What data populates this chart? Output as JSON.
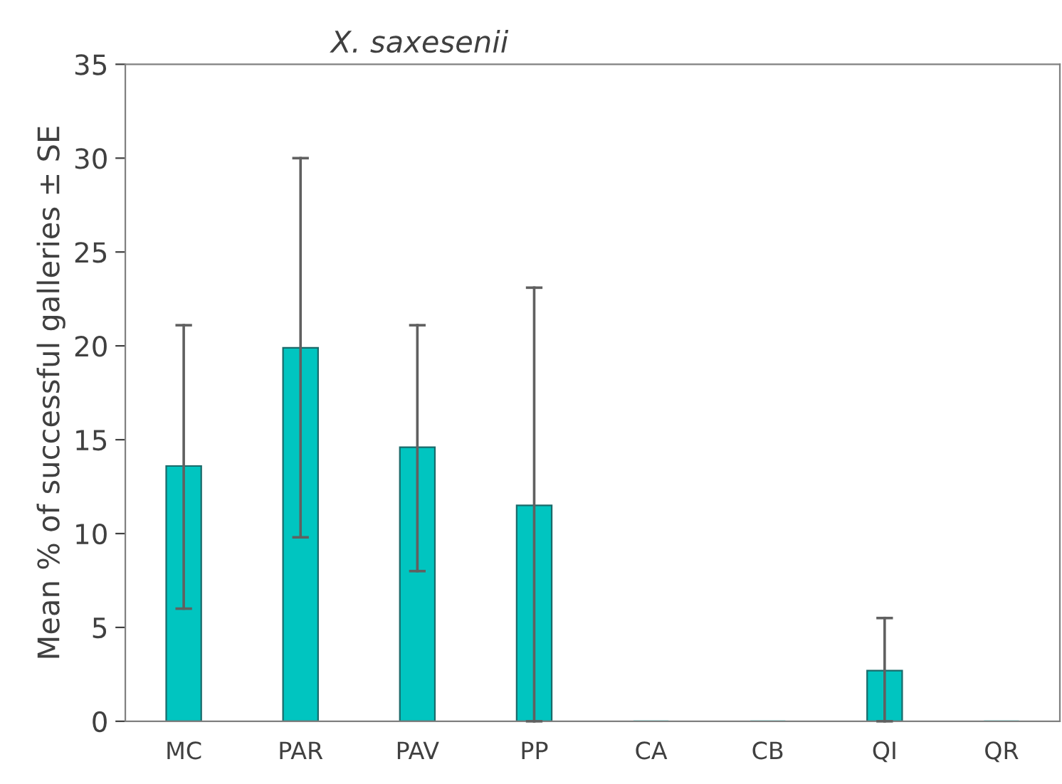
{
  "chart_data": {
    "type": "bar",
    "title": "X. saxesenii",
    "ylabel": "Mean % of successful galleries ± SE",
    "categories": [
      "MC",
      "PAR",
      "PAV",
      "PP",
      "CA",
      "CB",
      "QI",
      "QR"
    ],
    "values": [
      13.6,
      19.9,
      14.6,
      11.5,
      0,
      0,
      2.7,
      0
    ],
    "errors": [
      [
        6.0,
        21.1
      ],
      [
        9.8,
        30.0
      ],
      [
        8.0,
        21.1
      ],
      [
        0,
        23.1
      ],
      null,
      null,
      [
        0,
        5.5
      ],
      null
    ],
    "color": "#00c5c0",
    "ylim": [
      0,
      35
    ],
    "yticks": [
      0,
      5,
      10,
      15,
      20,
      25,
      30,
      35
    ],
    "grid": false
  }
}
